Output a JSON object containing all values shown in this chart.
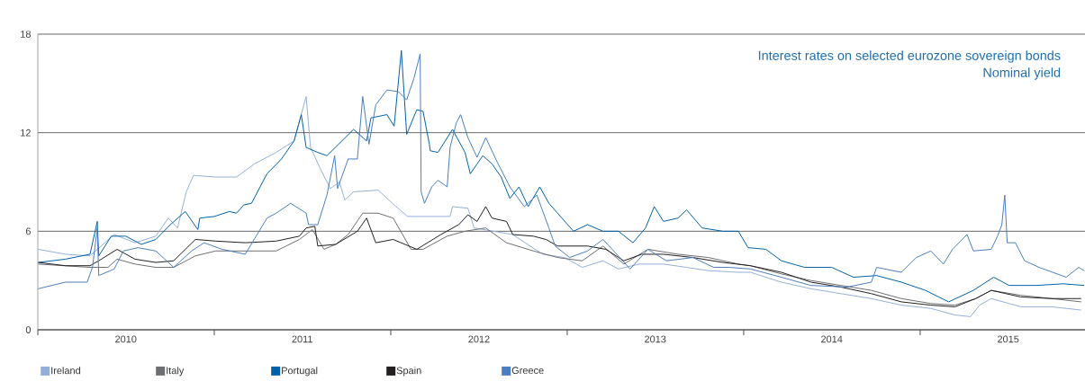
{
  "chart_data": {
    "type": "line",
    "title": "Interest rates on selected eurozone sovereign bonds",
    "subtitle": "Nominal yield",
    "xlim": [
      "2010-01-01",
      "2015-12-08"
    ],
    "xticks": [
      {
        "value": "2010-01-01",
        "label": null
      },
      {
        "value": "2010-07-02",
        "label": "2010"
      },
      {
        "value": "2011-01-01",
        "label": null
      },
      {
        "value": "2011-07-02",
        "label": "2011"
      },
      {
        "value": "2012-01-01",
        "label": null
      },
      {
        "value": "2012-07-02",
        "label": "2012"
      },
      {
        "value": "2013-01-01",
        "label": null
      },
      {
        "value": "2013-07-02",
        "label": "2013"
      },
      {
        "value": "2014-01-01",
        "label": null
      },
      {
        "value": "2014-07-02",
        "label": "2014"
      },
      {
        "value": "2015-01-01",
        "label": null
      },
      {
        "value": "2015-07-02",
        "label": "2015"
      }
    ],
    "ylim": [
      0,
      18
    ],
    "yticks": [
      0,
      6,
      12,
      18
    ],
    "grid": "y",
    "legend": "bottom",
    "series": [
      {
        "name": "Ireland",
        "color": "#94afd9",
        "x": [
          "2010-01-02",
          "2010-02-27",
          "2010-04-19",
          "2010-06-08",
          "2010-07-21",
          "2010-09-02",
          "2010-09-28",
          "2010-10-17",
          "2010-11-04",
          "2010-11-19",
          "2011-01-04",
          "2011-02-16",
          "2011-03-25",
          "2011-05-09",
          "2011-06-15",
          "2011-07-10",
          "2011-07-19",
          "2011-08-10",
          "2011-08-29",
          "2011-09-17",
          "2011-09-28",
          "2011-10-16",
          "2011-12-06",
          "2012-01-12",
          "2012-02-05",
          "2012-03-26",
          "2012-05-03",
          "2012-05-08",
          "2012-06-09",
          "2012-06-22",
          "2012-09-10",
          "2012-11-11",
          "2012-12-26",
          "2013-02-01",
          "2013-03-16",
          "2013-04-17",
          "2013-05-30",
          "2013-07-19",
          "2013-09-05",
          "2013-10-20",
          "2013-12-21",
          "2014-01-15",
          "2014-03-20",
          "2014-05-20",
          "2014-07-21",
          "2014-09-22",
          "2014-11-23",
          "2015-01-23",
          "2015-03-14",
          "2015-04-15",
          "2015-05-04",
          "2015-05-28",
          "2015-07-28",
          "2015-09-30",
          "2015-11-30"
        ],
        "values": [
          4.9,
          4.6,
          4.5,
          5.8,
          5.3,
          5.7,
          6.8,
          6.2,
          8.4,
          9.4,
          9.3,
          9.3,
          10.1,
          10.8,
          11.5,
          14.2,
          11.1,
          9.7,
          8.6,
          9.0,
          7.9,
          8.4,
          8.5,
          7.5,
          6.9,
          6.9,
          6.9,
          7.5,
          7.4,
          6.2,
          5.8,
          4.6,
          4.4,
          3.8,
          4.2,
          3.7,
          4.0,
          4.0,
          3.8,
          3.6,
          3.5,
          3.5,
          2.9,
          2.5,
          2.2,
          1.9,
          1.5,
          1.3,
          0.9,
          0.8,
          1.5,
          1.9,
          1.4,
          1.4,
          1.2
        ]
      },
      {
        "name": "Italy",
        "color": "#6d6e71",
        "x": [
          "2010-01-02",
          "2010-04-19",
          "2010-05-26",
          "2010-06-14",
          "2010-07-21",
          "2010-09-02",
          "2010-10-09",
          "2010-11-23",
          "2011-01-04",
          "2011-03-06",
          "2011-05-09",
          "2011-06-26",
          "2011-07-23",
          "2011-08-16",
          "2011-09-09",
          "2011-10-05",
          "2011-11-04",
          "2011-12-06",
          "2012-01-06",
          "2012-02-12",
          "2012-03-08",
          "2012-04-27",
          "2012-06-03",
          "2012-07-16",
          "2012-08-28",
          "2012-10-23",
          "2012-12-12",
          "2013-02-01",
          "2013-03-16",
          "2013-04-28",
          "2013-06-17",
          "2013-08-18",
          "2013-10-20",
          "2013-12-21",
          "2014-01-15",
          "2014-03-20",
          "2014-05-20",
          "2014-07-21",
          "2014-09-22",
          "2014-11-23",
          "2015-01-23",
          "2015-03-14",
          "2015-04-26",
          "2015-05-28",
          "2015-07-28",
          "2015-09-30",
          "2015-11-30"
        ],
        "values": [
          4.0,
          3.8,
          3.8,
          4.3,
          4.0,
          3.8,
          3.8,
          4.5,
          4.8,
          4.8,
          4.8,
          5.5,
          6.1,
          4.9,
          5.2,
          5.8,
          7.1,
          7.1,
          6.8,
          4.9,
          4.9,
          5.7,
          6.0,
          6.2,
          5.3,
          4.8,
          4.4,
          4.2,
          5.1,
          4.0,
          4.9,
          4.6,
          4.4,
          4.0,
          3.9,
          3.4,
          3.0,
          2.7,
          2.4,
          1.9,
          1.6,
          1.5,
          1.9,
          2.4,
          2.1,
          1.9,
          1.7
        ]
      },
      {
        "name": "Portugal",
        "color": "#0061a8",
        "x": [
          "2010-01-02",
          "2010-02-27",
          "2010-04-19",
          "2010-05-04",
          "2010-05-07",
          "2010-06-02",
          "2010-07-02",
          "2010-08-03",
          "2010-09-02",
          "2010-10-02",
          "2010-11-02",
          "2010-11-28",
          "2010-12-02",
          "2011-01-01",
          "2011-02-01",
          "2011-02-16",
          "2011-03-03",
          "2011-03-19",
          "2011-04-20",
          "2011-05-20",
          "2011-06-15",
          "2011-06-30",
          "2011-07-10",
          "2011-08-03",
          "2011-08-22",
          "2011-09-22",
          "2011-10-16",
          "2011-11-12",
          "2011-11-21",
          "2011-12-24",
          "2012-01-08",
          "2012-01-23",
          "2012-02-03",
          "2012-02-24",
          "2012-03-08",
          "2012-03-21",
          "2012-03-23",
          "2012-04-08",
          "2012-04-23",
          "2012-05-08",
          "2012-06-03",
          "2012-06-14",
          "2012-06-28",
          "2012-07-10",
          "2012-07-29",
          "2012-08-17",
          "2012-09-04",
          "2012-09-23",
          "2012-10-12",
          "2012-11-05",
          "2012-11-24",
          "2012-12-12",
          "2013-01-14",
          "2013-02-12",
          "2013-03-16",
          "2013-04-17",
          "2013-05-17",
          "2013-06-12",
          "2013-06-30",
          "2013-07-19",
          "2013-08-18",
          "2013-09-05",
          "2013-10-07",
          "2013-11-19",
          "2013-12-21",
          "2014-01-10",
          "2014-02-16",
          "2014-03-20",
          "2014-05-07",
          "2014-07-02",
          "2014-08-16",
          "2014-10-03",
          "2014-11-23",
          "2015-01-12",
          "2015-03-01",
          "2015-04-21",
          "2015-06-02",
          "2015-07-04",
          "2015-08-29",
          "2015-10-24",
          "2015-12-06"
        ],
        "values": [
          4.1,
          4.3,
          4.6,
          6.6,
          4.5,
          5.7,
          5.7,
          5.2,
          5.5,
          6.4,
          7.2,
          6.1,
          6.8,
          6.9,
          7.2,
          7.1,
          7.6,
          7.7,
          9.5,
          10.4,
          11.5,
          13.1,
          11.1,
          10.8,
          10.6,
          11.5,
          12.2,
          11.5,
          12.9,
          13.1,
          12.4,
          17.0,
          11.9,
          13.4,
          13.3,
          11.3,
          10.9,
          10.8,
          11.5,
          12.2,
          10.8,
          9.5,
          10.1,
          10.6,
          10.1,
          9.3,
          8.0,
          8.7,
          7.5,
          8.7,
          7.7,
          7.1,
          6.0,
          6.4,
          6.0,
          6.0,
          5.3,
          6.2,
          7.5,
          6.6,
          6.8,
          7.3,
          6.2,
          6.0,
          6.0,
          5.0,
          4.9,
          4.2,
          3.8,
          3.8,
          3.2,
          3.3,
          2.9,
          2.4,
          1.7,
          2.4,
          3.2,
          2.7,
          2.7,
          2.8,
          2.7
        ]
      },
      {
        "name": "Spain",
        "color": "#231f20",
        "x": [
          "2010-01-02",
          "2010-02-27",
          "2010-04-19",
          "2010-05-07",
          "2010-06-14",
          "2010-07-21",
          "2010-09-02",
          "2010-10-09",
          "2010-11-23",
          "2011-01-04",
          "2011-03-06",
          "2011-05-09",
          "2011-06-26",
          "2011-07-10",
          "2011-07-28",
          "2011-08-03",
          "2011-09-09",
          "2011-10-24",
          "2011-11-12",
          "2011-12-01",
          "2012-01-06",
          "2012-02-24",
          "2012-04-14",
          "2012-05-21",
          "2012-06-09",
          "2012-06-28",
          "2012-07-16",
          "2012-07-29",
          "2012-08-28",
          "2012-09-10",
          "2012-10-23",
          "2012-11-18",
          "2012-12-12",
          "2013-02-12",
          "2013-03-22",
          "2013-04-28",
          "2013-06-04",
          "2013-07-19",
          "2013-09-18",
          "2013-11-19",
          "2014-01-15",
          "2014-03-20",
          "2014-05-20",
          "2014-07-21",
          "2014-09-22",
          "2014-11-23",
          "2015-01-23",
          "2015-03-14",
          "2015-04-26",
          "2015-05-28",
          "2015-07-28",
          "2015-09-30",
          "2015-11-30"
        ],
        "values": [
          4.1,
          3.9,
          3.9,
          4.2,
          4.9,
          4.3,
          4.1,
          4.2,
          5.5,
          5.4,
          5.3,
          5.4,
          5.7,
          6.2,
          6.3,
          5.1,
          5.2,
          6.0,
          6.8,
          5.3,
          5.5,
          4.9,
          5.8,
          6.4,
          7.0,
          6.6,
          7.5,
          6.8,
          6.6,
          5.8,
          5.7,
          5.5,
          5.1,
          5.1,
          4.9,
          4.2,
          4.6,
          4.6,
          4.4,
          4.1,
          3.9,
          3.5,
          2.9,
          2.6,
          2.2,
          1.7,
          1.5,
          1.4,
          1.9,
          2.4,
          2.0,
          1.9,
          1.9
        ]
      },
      {
        "name": "Greece",
        "color": "#4a7ebf",
        "x": [
          "2010-01-02",
          "2010-02-27",
          "2010-04-13",
          "2010-04-24",
          "2010-05-04",
          "2010-05-07",
          "2010-06-08",
          "2010-06-27",
          "2010-07-27",
          "2010-09-02",
          "2010-10-09",
          "2010-11-15",
          "2010-12-11",
          "2011-01-17",
          "2011-03-06",
          "2011-04-20",
          "2011-05-09",
          "2011-06-08",
          "2011-07-10",
          "2011-07-15",
          "2011-08-03",
          "2011-08-22",
          "2011-09-07",
          "2011-09-13",
          "2011-10-05",
          "2011-10-24",
          "2011-11-04",
          "2011-11-17",
          "2011-12-01",
          "2011-12-24",
          "2012-01-17",
          "2012-02-03",
          "2012-02-18",
          "2012-03-02",
          "2012-03-04",
          "2012-03-11",
          "2012-03-26",
          "2012-04-08",
          "2012-04-27",
          "2012-05-03",
          "2012-05-16",
          "2012-05-25",
          "2012-06-09",
          "2012-06-28",
          "2012-07-16",
          "2012-08-09",
          "2012-09-04",
          "2012-10-04",
          "2012-10-30",
          "2012-11-24",
          "2012-12-07",
          "2013-01-06",
          "2013-02-12",
          "2013-03-16",
          "2013-04-04",
          "2013-05-11",
          "2013-06-17",
          "2013-07-25",
          "2013-09-18",
          "2013-10-31",
          "2013-12-02",
          "2014-01-15",
          "2014-03-20",
          "2014-05-20",
          "2014-08-03",
          "2014-09-22",
          "2014-10-03",
          "2014-11-23",
          "2014-12-24",
          "2015-01-23",
          "2015-02-18",
          "2015-03-09",
          "2015-04-08",
          "2015-04-21",
          "2015-05-28",
          "2015-06-10",
          "2015-06-19",
          "2015-06-25",
          "2015-06-30",
          "2015-07-17",
          "2015-08-05",
          "2015-09-04",
          "2015-10-30",
          "2015-11-25",
          "2015-12-06"
        ],
        "values": [
          2.5,
          2.9,
          2.9,
          3.8,
          6.2,
          3.3,
          3.7,
          4.8,
          5.0,
          4.8,
          3.8,
          4.8,
          5.3,
          4.9,
          4.6,
          6.8,
          7.1,
          7.7,
          7.1,
          6.4,
          6.4,
          8.2,
          10.6,
          8.6,
          10.4,
          10.4,
          14.2,
          11.3,
          13.7,
          14.6,
          14.5,
          14.0,
          15.3,
          16.8,
          8.4,
          7.7,
          8.7,
          9.1,
          8.7,
          11.1,
          12.6,
          13.1,
          11.7,
          10.5,
          11.7,
          10.2,
          8.7,
          7.5,
          8.2,
          6.2,
          5.1,
          4.4,
          4.8,
          5.5,
          4.9,
          3.7,
          4.9,
          4.2,
          4.4,
          3.8,
          3.8,
          3.7,
          3.2,
          2.7,
          2.6,
          2.9,
          3.8,
          3.5,
          4.4,
          4.8,
          4.0,
          4.9,
          5.8,
          4.8,
          4.9,
          5.7,
          6.4,
          8.2,
          5.3,
          5.3,
          4.2,
          3.8,
          3.2,
          3.8,
          3.6
        ]
      }
    ]
  }
}
